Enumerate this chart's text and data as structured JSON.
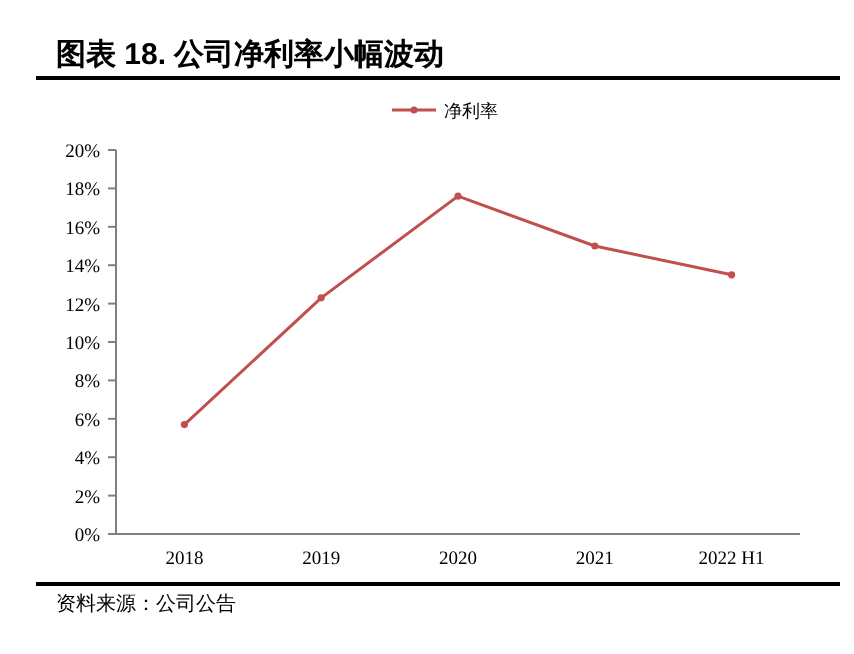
{
  "chart_data": {
    "type": "line",
    "title": "图表 18. 公司净利率小幅波动",
    "categories": [
      "2018",
      "2019",
      "2020",
      "2021",
      "2022 H1"
    ],
    "series": [
      {
        "name": "净利率",
        "color": "#c0504d",
        "values": [
          5.7,
          12.3,
          17.6,
          15.0,
          13.5
        ]
      }
    ],
    "ylim": [
      0,
      20
    ],
    "yticks": [
      {
        "value": 0,
        "label": "0%"
      },
      {
        "value": 2,
        "label": "2%"
      },
      {
        "value": 4,
        "label": "4%"
      },
      {
        "value": 6,
        "label": "6%"
      },
      {
        "value": 8,
        "label": "8%"
      },
      {
        "value": 10,
        "label": "10%"
      },
      {
        "value": 12,
        "label": "12%"
      },
      {
        "value": 14,
        "label": "14%"
      },
      {
        "value": 16,
        "label": "16%"
      },
      {
        "value": 18,
        "label": "18%"
      },
      {
        "value": 20,
        "label": "20%"
      }
    ],
    "grid": false,
    "legend": "top",
    "marker": "circle",
    "line_style": "solid",
    "annotations": [
      "资料来源：公司公告"
    ]
  }
}
